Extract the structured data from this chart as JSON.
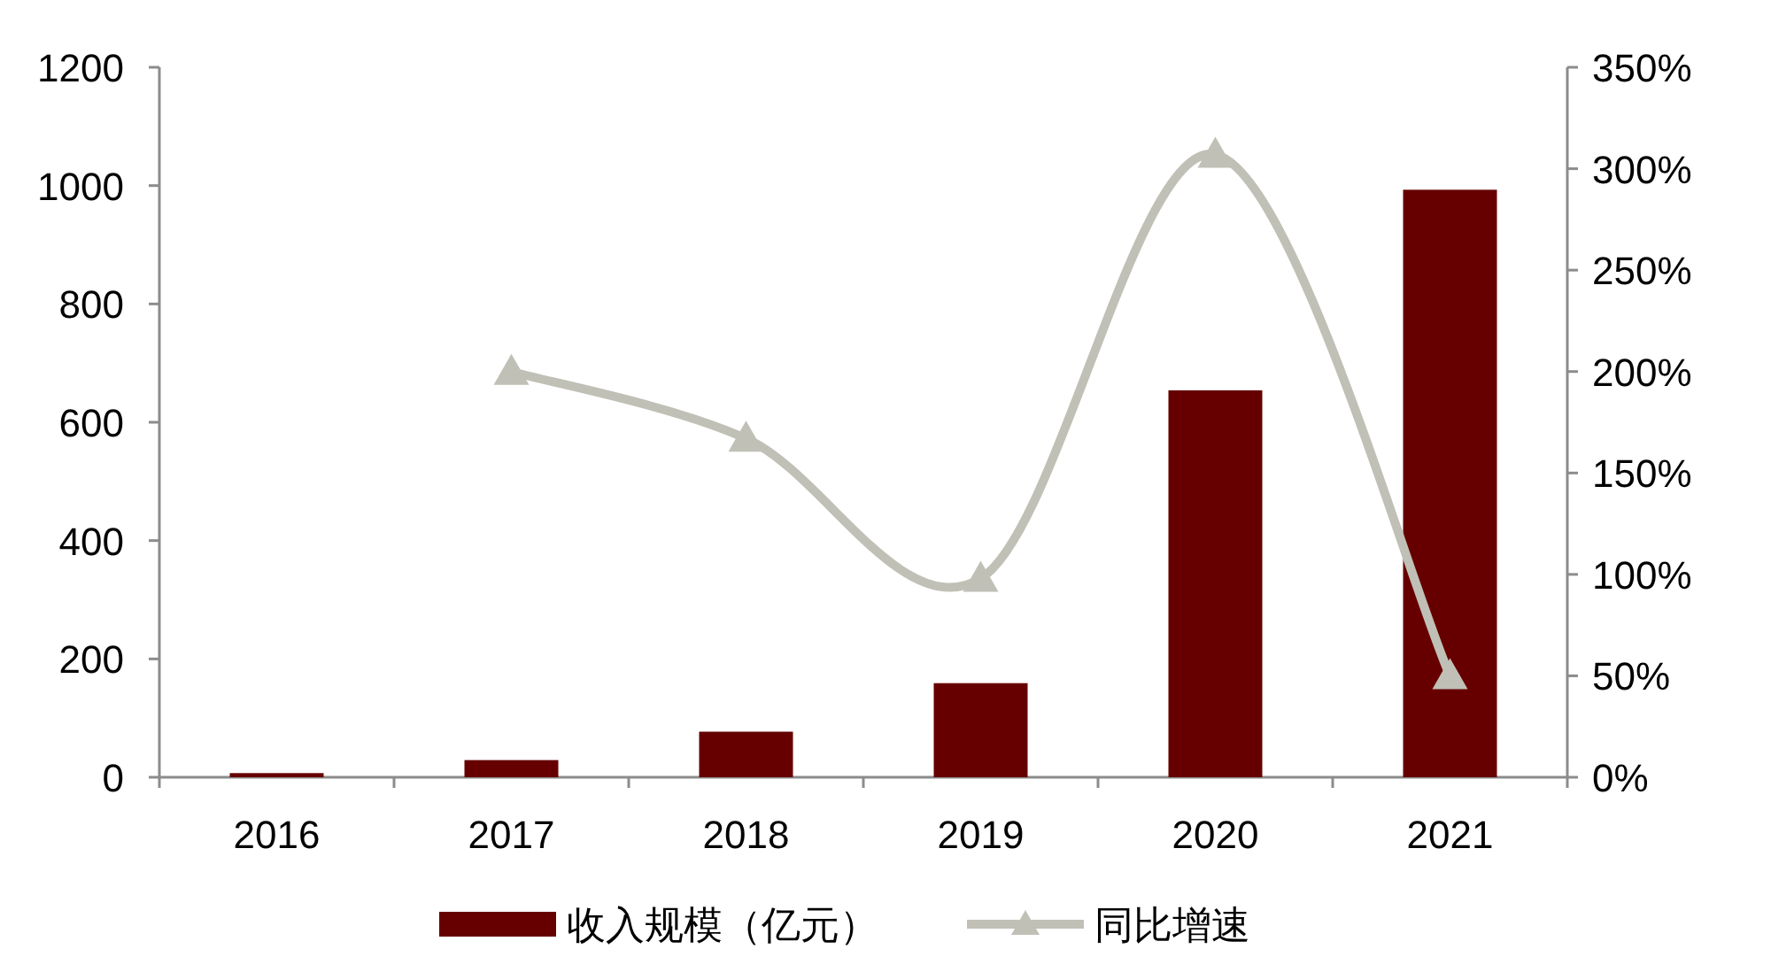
{
  "chart_data": {
    "type": "bar",
    "categories": [
      "2016",
      "2017",
      "2018",
      "2019",
      "2020",
      "2021"
    ],
    "series": [
      {
        "name": "收入规模（亿元）",
        "color": "#660000",
        "values": [
          7,
          29,
          77,
          159,
          654,
          993
        ]
      },
      {
        "name": "同比增速",
        "type": "line",
        "axis": "y2",
        "color": "#c0c0b6",
        "marker": "triangle",
        "values": [
          null,
          200,
          167,
          98,
          307,
          50
        ]
      }
    ],
    "ylim": [
      0,
      1200
    ],
    "yticks": [
      0,
      200,
      400,
      600,
      800,
      1000,
      1200
    ],
    "y2lim": [
      0,
      350
    ],
    "y2ticks": [
      {
        "value": 0,
        "label": "0%"
      },
      {
        "value": 50,
        "label": "50%"
      },
      {
        "value": 100,
        "label": "100%"
      },
      {
        "value": 150,
        "label": "150%"
      },
      {
        "value": 200,
        "label": "200%"
      },
      {
        "value": 250,
        "label": "250%"
      },
      {
        "value": 300,
        "label": "300%"
      },
      {
        "value": 350,
        "label": "350%"
      }
    ],
    "legend": "bottom"
  }
}
